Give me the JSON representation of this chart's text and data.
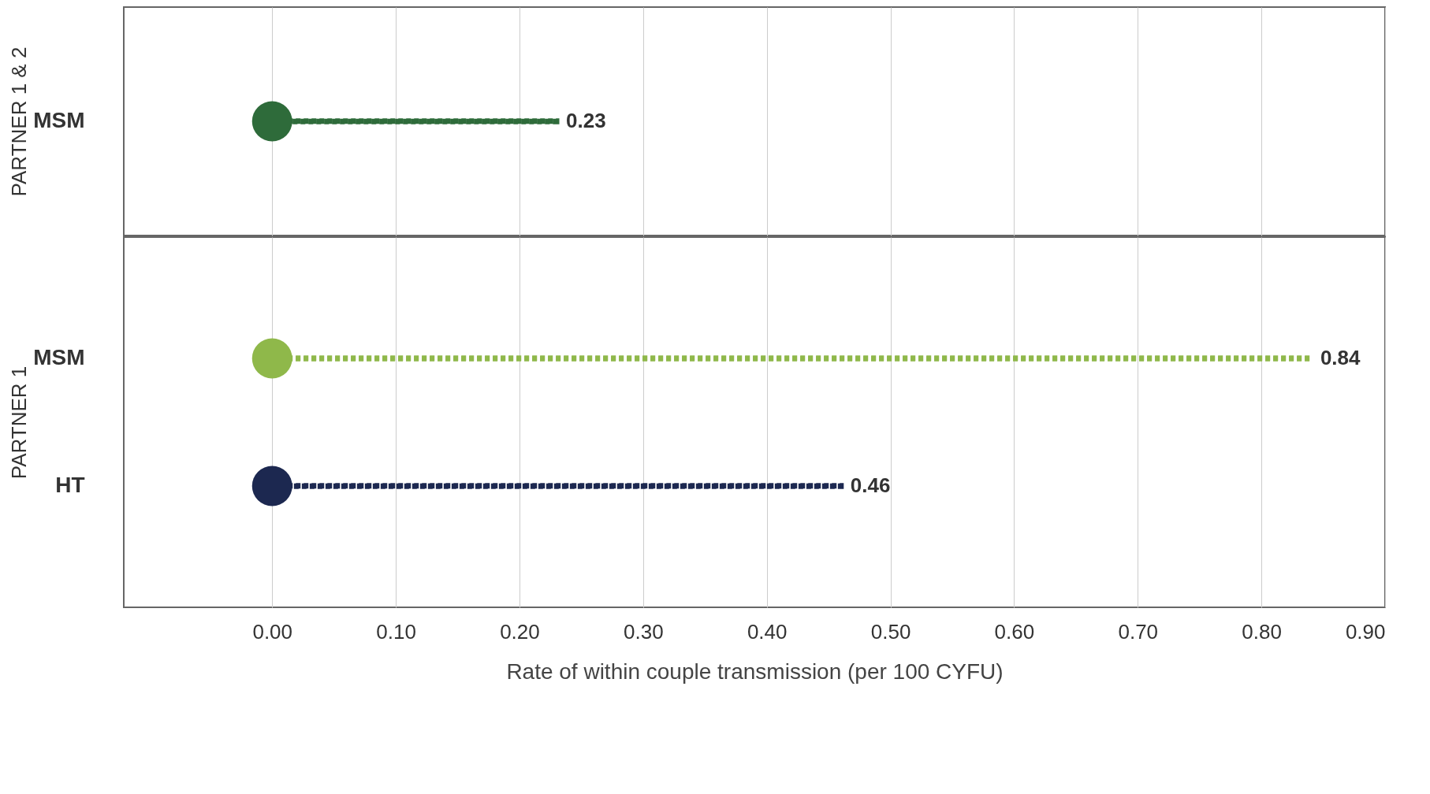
{
  "chart_data": [
    {
      "type": "lollipop",
      "orientation": "horizontal",
      "ylabel": "PARTNER 1 & 2",
      "categories": [
        "MSM"
      ],
      "series": [
        {
          "type": "bar",
          "values": [
            0.23
          ],
          "colors": [
            "#2e6b3a"
          ],
          "line_style": "dotted",
          "data_labels": true
        },
        {
          "type": "scatter",
          "values": [
            0
          ],
          "colors": [
            "#2e6b3a"
          ],
          "marker": "circle"
        }
      ],
      "xlim": [
        -0.12,
        0.9
      ],
      "xticks": [
        0,
        0.1,
        0.2,
        0.3,
        0.4,
        0.5,
        0.6,
        0.7,
        0.8,
        0.9
      ],
      "tick_labels": "y",
      "grid": "x"
    },
    {
      "type": "lollipop",
      "orientation": "horizontal",
      "ylabel": "PARTNER 1",
      "xlabel": "Rate of within couple transmission (per 100 CYFU)",
      "categories": [
        "MSM",
        "HT"
      ],
      "series": [
        {
          "type": "bar",
          "values": [
            0.84,
            0.46
          ],
          "colors": [
            "#8fb84a",
            "#1c2850"
          ],
          "line_style": "dotted",
          "data_labels": true
        },
        {
          "type": "scatter",
          "values": [
            0,
            0
          ],
          "colors": [
            "#8fb84a",
            "#1c2850"
          ],
          "marker": "circle"
        }
      ],
      "xlim": [
        -0.12,
        0.9
      ],
      "xticks": [
        {
          "value": 0,
          "label": "0.00"
        },
        {
          "value": 0.1,
          "label": "0.10"
        },
        {
          "value": 0.2,
          "label": "0.20"
        },
        {
          "value": 0.3,
          "label": "0.30"
        },
        {
          "value": 0.4,
          "label": "0.40"
        },
        {
          "value": 0.5,
          "label": "0.50"
        },
        {
          "value": 0.6,
          "label": "0.60"
        },
        {
          "value": 0.7,
          "label": "0.70"
        },
        {
          "value": 0.8,
          "label": "0.80"
        },
        {
          "value": 0.9,
          "label": "0.90"
        }
      ],
      "grid": "x"
    }
  ]
}
